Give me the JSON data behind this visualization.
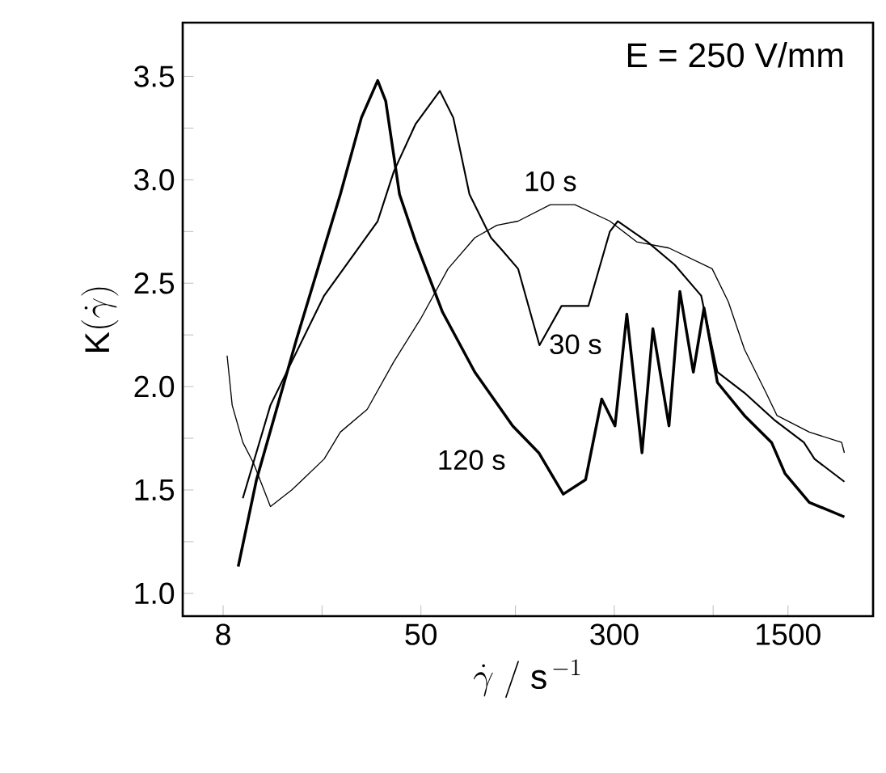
{
  "chart_data": {
    "type": "line",
    "xlabel": "\\dot{\\gamma}\\ /\\ \\mathrm{s}^{\\,-1}",
    "ylabel": "\\mathrm{K}(\\dot{\\gamma})",
    "log": "x",
    "xlim": [
      5.5,
      3300
    ],
    "ylim": [
      0.89,
      3.76
    ],
    "xticks": [
      8,
      {
        "value": 20,
        "label": null
      },
      50,
      {
        "value": 120,
        "label": null
      },
      300,
      {
        "value": 750,
        "label": null
      },
      1500
    ],
    "yticks": [
      {
        "value": 1,
        "label": "1.0"
      },
      {
        "value": 1.25,
        "label": null
      },
      {
        "value": 1.5,
        "label": "1.5"
      },
      {
        "value": 1.75,
        "label": null
      },
      {
        "value": 2,
        "label": "2.0"
      },
      {
        "value": 2.25,
        "label": null
      },
      {
        "value": 2.5,
        "label": "2.5"
      },
      {
        "value": 2.75,
        "label": null
      },
      {
        "value": 3,
        "label": "3.0"
      },
      {
        "value": 3.25,
        "label": null
      },
      {
        "value": 3.5,
        "label": "3.5"
      }
    ],
    "annotations": [
      "E = 250 V/mm"
    ],
    "series": [
      {
        "name": "10 s",
        "color": "#000000",
        "x": [
          8.3,
          8.7,
          9.6,
          10.6,
          12.4,
          15.1,
          16.7,
          20.4,
          23.7,
          30.4,
          38.9,
          50,
          64.3,
          82.4,
          101,
          123,
          166,
          208,
          288,
          369,
          498,
          743,
          863,
          1002,
          1224,
          1355,
          1828,
          2466,
          2529
        ],
        "values": [
          2.15,
          1.91,
          1.73,
          1.63,
          1.42,
          1.5,
          1.55,
          1.65,
          1.78,
          1.89,
          2.12,
          2.33,
          2.57,
          2.72,
          2.78,
          2.8,
          2.88,
          2.88,
          2.8,
          2.7,
          2.67,
          2.57,
          2.41,
          2.18,
          1.97,
          1.86,
          1.78,
          1.73,
          1.68
        ]
      },
      {
        "name": "30 s",
        "color": "#000000",
        "x": [
          9.6,
          12.4,
          20.4,
          33.5,
          38.9,
          47.6,
          59.6,
          67.5,
          78.4,
          95.7,
          106,
          123,
          150,
          184,
          236,
          288,
          310,
          408,
          524,
          671,
          780,
          1002,
          1318,
          1738,
          1919,
          2529
        ],
        "values": [
          1.46,
          1.91,
          2.44,
          2.8,
          3.04,
          3.27,
          3.43,
          3.3,
          2.93,
          2.72,
          2.66,
          2.57,
          2.2,
          2.39,
          2.39,
          2.75,
          2.8,
          2.7,
          2.59,
          2.44,
          2.07,
          1.97,
          1.84,
          1.73,
          1.65,
          1.54
        ]
      },
      {
        "name": "120 s",
        "color": "#000000",
        "x": [
          9.2,
          10.9,
          15.8,
          23.7,
          28.8,
          33.5,
          36.1,
          41.0,
          47.6,
          61.1,
          82.4,
          117,
          149,
          187,
          230,
          267,
          302,
          337,
          388,
          429,
          498,
          551,
          624,
          689,
          780,
          1002,
          1288,
          1459,
          1828,
          2529
        ],
        "values": [
          1.13,
          1.55,
          2.23,
          2.93,
          3.3,
          3.48,
          3.38,
          2.93,
          2.7,
          2.36,
          2.07,
          1.81,
          1.68,
          1.48,
          1.55,
          1.94,
          1.81,
          2.35,
          1.68,
          2.28,
          1.81,
          2.46,
          2.07,
          2.38,
          2.02,
          1.86,
          1.73,
          1.58,
          1.44,
          1.37
        ]
      }
    ]
  }
}
